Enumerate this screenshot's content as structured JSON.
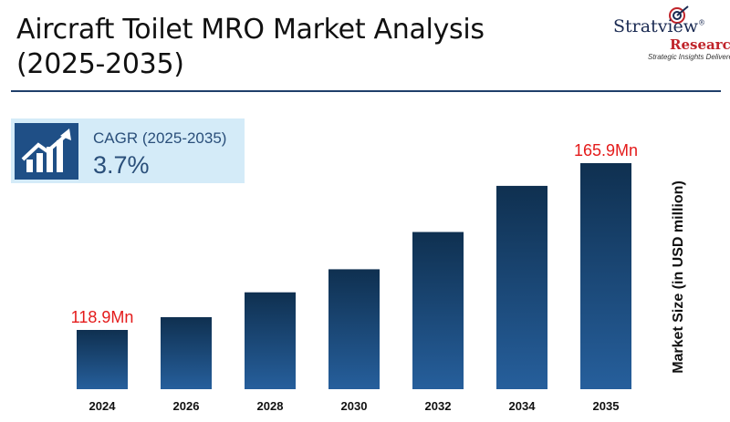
{
  "title": "Aircraft Toilet MRO Market Analysis (2025-2035)",
  "logo": {
    "name": "Stratview",
    "registered": "®",
    "sub": "Research",
    "tagline": "Strategic Insights Delivered"
  },
  "cagr": {
    "label": "CAGR (2025-2035)",
    "value": "3.7%"
  },
  "chart_data": {
    "type": "bar",
    "title": "Aircraft Toilet MRO Market Analysis (2025-2035)",
    "ylabel": "Market Size (in USD million)",
    "xlabel": "",
    "categories": [
      "2024",
      "2026",
      "2028",
      "2030",
      "2032",
      "2034",
      "2035"
    ],
    "values": [
      118.9,
      122.5,
      129.5,
      136.0,
      146.5,
      159.5,
      165.9
    ],
    "ylim": [
      110,
      168
    ],
    "data_labels": [
      {
        "category": "2024",
        "text": "118.9Mn"
      },
      {
        "category": "2035",
        "text": "165.9Mn"
      }
    ],
    "bar_gradient": [
      "#0f3050",
      "#265f9c"
    ],
    "label_color": "#e41b1b",
    "grid": false,
    "legend": "none"
  }
}
